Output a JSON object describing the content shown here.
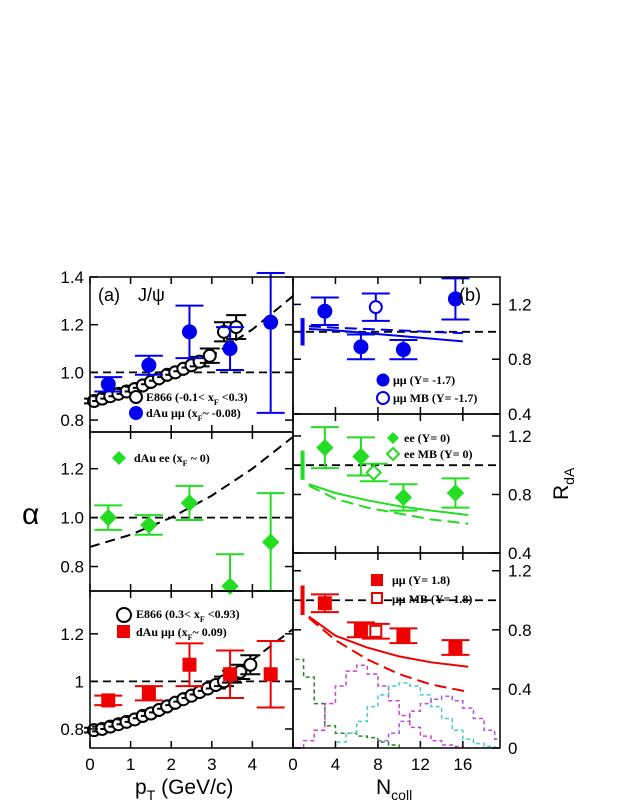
{
  "chart_data": [
    {
      "type": "scatter",
      "id": "a1",
      "label": "(a)",
      "particle": "J/ψ",
      "xlim": [
        0,
        5.0
      ],
      "ylim": [
        0.75,
        1.4
      ],
      "yticks": [
        0.8,
        1.0,
        1.2,
        1.4
      ],
      "ytick_labels": [
        "0.8",
        "1.0",
        "1.2",
        "1.4"
      ],
      "reference": 1.0,
      "dashed_curve": {
        "x": [
          0,
          1,
          2,
          3,
          4,
          5
        ],
        "y": [
          0.86,
          0.91,
          0.98,
          1.07,
          1.18,
          1.32
        ]
      },
      "series": [
        {
          "name": "E866 (-0.1< x_F <0.3)",
          "color": "#000000",
          "marker": "open-circle",
          "x": [
            0.1,
            0.3,
            0.5,
            0.7,
            0.9,
            1.1,
            1.3,
            1.5,
            1.7,
            1.9,
            2.1,
            2.3,
            2.5,
            2.7,
            2.95,
            3.3,
            3.6
          ],
          "y": [
            0.88,
            0.89,
            0.9,
            0.91,
            0.92,
            0.93,
            0.945,
            0.96,
            0.975,
            0.99,
            1.0,
            1.015,
            1.03,
            1.045,
            1.07,
            1.17,
            1.19
          ],
          "err": [
            0.01,
            0.01,
            0.01,
            0.01,
            0.01,
            0.01,
            0.01,
            0.01,
            0.01,
            0.01,
            0.01,
            0.01,
            0.01,
            0.02,
            0.03,
            0.04,
            0.05
          ]
        },
        {
          "name": "dAu μμ (x_F ~ -0.08)",
          "color": "#0000ee",
          "marker": "filled-circle",
          "x": [
            0.45,
            1.45,
            2.45,
            3.45,
            4.45
          ],
          "y": [
            0.95,
            1.03,
            1.17,
            1.1,
            1.21
          ],
          "err": [
            0.03,
            0.04,
            0.11,
            0.09,
            0.38
          ]
        }
      ]
    },
    {
      "type": "scatter",
      "id": "a2",
      "xlim": [
        0,
        5.0
      ],
      "ylim": [
        0.7,
        1.35
      ],
      "yticks": [
        0.8,
        1.0,
        1.2
      ],
      "ytick_labels": [
        "0.8",
        "1.0",
        "1.2"
      ],
      "reference": 1.0,
      "dashed_curve": {
        "x": [
          0,
          1,
          2,
          3,
          4,
          5
        ],
        "y": [
          0.88,
          0.93,
          1.0,
          1.09,
          1.2,
          1.33
        ]
      },
      "series": [
        {
          "name": "dAu ee (x_F ~ 0)",
          "color": "#22dd22",
          "marker": "filled-diamond",
          "x": [
            0.45,
            1.45,
            2.45,
            3.45,
            4.45
          ],
          "y": [
            1.0,
            0.97,
            1.06,
            0.72,
            0.9
          ],
          "err": [
            0.05,
            0.04,
            0.07,
            0.13,
            0.2
          ]
        }
      ]
    },
    {
      "type": "scatter",
      "id": "a3",
      "xlim": [
        0,
        5.0
      ],
      "ylim": [
        0.72,
        1.38
      ],
      "yticks": [
        0.8,
        1.0,
        1.2
      ],
      "ytick_labels": [
        "0.8",
        "1",
        "1.2"
      ],
      "reference": 1.0,
      "dashed_curve": {
        "x": [
          0,
          1,
          2,
          3,
          4,
          5
        ],
        "y": [
          0.79,
          0.84,
          0.91,
          0.99,
          1.09,
          1.22
        ]
      },
      "series": [
        {
          "name": "E866 (0.3< x_F <0.93)",
          "color": "#000000",
          "marker": "open-circle",
          "x": [
            0.1,
            0.3,
            0.5,
            0.7,
            0.9,
            1.1,
            1.3,
            1.5,
            1.7,
            1.9,
            2.1,
            2.3,
            2.5,
            2.7,
            2.9,
            3.1,
            3.3,
            3.5,
            3.7,
            3.95
          ],
          "y": [
            0.795,
            0.8,
            0.81,
            0.82,
            0.83,
            0.84,
            0.855,
            0.865,
            0.88,
            0.895,
            0.91,
            0.925,
            0.94,
            0.955,
            0.97,
            0.985,
            1.0,
            1.02,
            1.04,
            1.07
          ],
          "err": [
            0.01,
            0.01,
            0.01,
            0.01,
            0.01,
            0.01,
            0.01,
            0.01,
            0.01,
            0.01,
            0.01,
            0.01,
            0.01,
            0.01,
            0.01,
            0.015,
            0.02,
            0.025,
            0.03,
            0.04
          ]
        },
        {
          "name": "dAu μμ (x_F ~ 0.09)",
          "color": "#ee0000",
          "marker": "filled-square",
          "x": [
            0.45,
            1.45,
            2.45,
            3.45,
            4.45
          ],
          "y": [
            0.92,
            0.95,
            1.07,
            1.03,
            1.03
          ],
          "err": [
            0.02,
            0.03,
            0.09,
            0.1,
            0.14
          ]
        }
      ]
    },
    {
      "type": "scatter",
      "id": "b1",
      "label": "(b)",
      "xlim": [
        0,
        19.5
      ],
      "ylim": [
        0.4,
        1.4
      ],
      "yticks": [
        0.4,
        0.8,
        1.2
      ],
      "ytick_labels": [
        "0.4",
        "0.8",
        "1.2"
      ],
      "reference": 1.0,
      "global_error": {
        "center": 1.0,
        "half": 0.1
      },
      "solid_curve": {
        "x": [
          1.5,
          4,
          7,
          10,
          13,
          16
        ],
        "y": [
          1.02,
          1.01,
          0.99,
          0.97,
          0.95,
          0.93
        ]
      },
      "dashed_curve": {
        "x": [
          1.5,
          4,
          7,
          10,
          13,
          16
        ],
        "y": [
          1.04,
          1.03,
          1.02,
          1.01,
          1.0,
          0.99
        ]
      },
      "series": [
        {
          "name": "μμ (Y= -1.7)",
          "color": "#0000ee",
          "marker": "filled-circle",
          "x": [
            3.0,
            6.4,
            10.4,
            15.3
          ],
          "y": [
            1.15,
            0.89,
            0.87,
            1.24
          ],
          "err": [
            0.1,
            0.09,
            0.07,
            0.15
          ]
        },
        {
          "name": "μμ MB (Y= -1.7)",
          "color": "#0000ee",
          "marker": "open-circle",
          "x": [
            7.8
          ],
          "y": [
            1.18
          ],
          "err": [
            0.1
          ]
        }
      ]
    },
    {
      "type": "scatter",
      "id": "b2",
      "xlim": [
        0,
        19.5
      ],
      "ylim": [
        0.4,
        1.35
      ],
      "yticks": [
        0.4,
        0.8,
        1.2
      ],
      "ytick_labels": [
        "0.4",
        "0.8",
        "1.2"
      ],
      "reference": 1.0,
      "global_error": {
        "center": 1.0,
        "half": 0.1
      },
      "solid_curve": {
        "x": [
          1.5,
          4,
          7,
          10,
          13,
          16.5
        ],
        "y": [
          0.87,
          0.81,
          0.76,
          0.72,
          0.69,
          0.66
        ]
      },
      "dashed_curve": {
        "x": [
          1.5,
          4,
          7,
          10,
          13,
          16.5
        ],
        "y": [
          0.86,
          0.77,
          0.71,
          0.67,
          0.63,
          0.6
        ]
      },
      "series": [
        {
          "name": "ee (Y= 0)",
          "color": "#22dd22",
          "marker": "filled-diamond",
          "x": [
            3.0,
            6.4,
            10.4,
            15.3
          ],
          "y": [
            1.12,
            1.06,
            0.78,
            0.81
          ],
          "err": [
            0.14,
            0.13,
            0.09,
            0.1
          ]
        },
        {
          "name": "ee MB (Y= 0)",
          "color": "#22dd22",
          "marker": "open-diamond",
          "x": [
            7.6
          ],
          "y": [
            0.95
          ],
          "err": [
            0.06
          ]
        }
      ]
    },
    {
      "type": "scatter",
      "id": "b3",
      "xlim": [
        0,
        19.5
      ],
      "xticks": [
        0,
        4,
        8,
        12,
        16
      ],
      "xtick_labels": [
        "0",
        "4",
        "8",
        "12",
        "16"
      ],
      "ylim": [
        0.0,
        1.32
      ],
      "yticks": [
        0.0,
        0.4,
        0.8,
        1.2
      ],
      "ytick_labels": [
        "0",
        "0.4",
        "0.8",
        "1.2"
      ],
      "reference": 1.0,
      "global_error": {
        "center": 1.0,
        "half": 0.1
      },
      "solid_curve": {
        "x": [
          1.5,
          4,
          7,
          10,
          13,
          16.5
        ],
        "y": [
          0.89,
          0.76,
          0.68,
          0.62,
          0.58,
          0.55
        ]
      },
      "dashed_curve": {
        "x": [
          1.5,
          4,
          7,
          10,
          13,
          16.5
        ],
        "y": [
          0.88,
          0.73,
          0.6,
          0.5,
          0.43,
          0.38
        ]
      },
      "series": [
        {
          "name": "μμ (Y= 1.8)",
          "color": "#ee0000",
          "marker": "filled-square",
          "x": [
            3.0,
            6.4,
            10.4,
            15.3
          ],
          "y": [
            0.98,
            0.8,
            0.76,
            0.68
          ],
          "err": [
            0.06,
            0.05,
            0.05,
            0.05
          ]
        },
        {
          "name": "μμ MB (Y= 1.8)",
          "color": "#ee0000",
          "marker": "open-square",
          "x": [
            7.8
          ],
          "y": [
            0.79
          ],
          "err": [
            0.05
          ]
        }
      ],
      "histograms": [
        {
          "color": "#228822",
          "edges": [
            0,
            1,
            2,
            3,
            4,
            5,
            6,
            7,
            8,
            9,
            10
          ],
          "y": [
            0.6,
            0.48,
            0.3,
            0.15,
            0.1,
            0.1,
            0.08,
            0.07,
            0.04,
            0.02
          ]
        },
        {
          "color": "#cc44cc",
          "edges": [
            1,
            2,
            3,
            4,
            5,
            6,
            7,
            8,
            9,
            10,
            11,
            12,
            13,
            14,
            15,
            16,
            17,
            18
          ],
          "y": [
            0.05,
            0.12,
            0.3,
            0.42,
            0.52,
            0.56,
            0.5,
            0.42,
            0.32,
            0.22,
            0.14,
            0.08,
            0.05,
            0.02,
            0.01,
            0.0,
            0.0
          ]
        },
        {
          "color": "#44cccc",
          "edges": [
            4,
            5,
            6,
            7,
            8,
            9,
            10,
            11,
            12,
            13,
            14,
            15,
            16,
            17,
            18,
            19
          ],
          "y": [
            0.04,
            0.1,
            0.18,
            0.28,
            0.36,
            0.42,
            0.44,
            0.42,
            0.36,
            0.28,
            0.2,
            0.12,
            0.06,
            0.03,
            0.01
          ]
        },
        {
          "color": "#aa55dd",
          "edges": [
            8,
            9,
            10,
            11,
            12,
            13,
            14,
            15,
            16,
            17,
            18,
            19,
            19.5
          ],
          "y": [
            0.05,
            0.1,
            0.18,
            0.25,
            0.3,
            0.33,
            0.35,
            0.32,
            0.27,
            0.2,
            0.12,
            0.06
          ]
        }
      ]
    }
  ],
  "left_xticks": [
    0,
    1,
    2,
    3,
    4
  ],
  "left_xtick_labels": [
    "0",
    "1",
    "2",
    "3",
    "4"
  ],
  "left_ylabel": "α",
  "left_xlabel": "p",
  "left_xlabel_sub": "T",
  "left_xlabel_tail": " (GeV/c)",
  "right_xlabel": "N",
  "right_xlabel_sub": "coll",
  "right_ylabel": "R",
  "right_ylabel_sub": "dA",
  "legends": {
    "a1_e866_pre": "E866 (-0.1< x",
    "a1_e866_sub": "F",
    "a1_e866_post": " <0.3)",
    "a1_dau_pre": "dAu μμ (x",
    "a1_dau_sub": "F",
    "a1_dau_post": "~ -0.08)",
    "a2_pre": "dAu ee (x",
    "a2_sub": "F",
    "a2_post": " ~ 0)",
    "a3_e866_pre": "E866 (0.3< x",
    "a3_e866_sub": "F",
    "a3_e866_post": " <0.93)",
    "a3_dau_pre": "dAu μμ (x",
    "a3_dau_sub": "F",
    "a3_dau_post": "~ 0.09)",
    "b1_a": "μμ (Y= -1.7)",
    "b1_b": "μμ MB (Y= -1.7)",
    "b2_a": "ee (Y= 0)",
    "b2_b": "ee MB (Y= 0)",
    "b3_a": "μμ (Y= 1.8)",
    "b3_b": "μμ MB (Y= 1.8)"
  }
}
